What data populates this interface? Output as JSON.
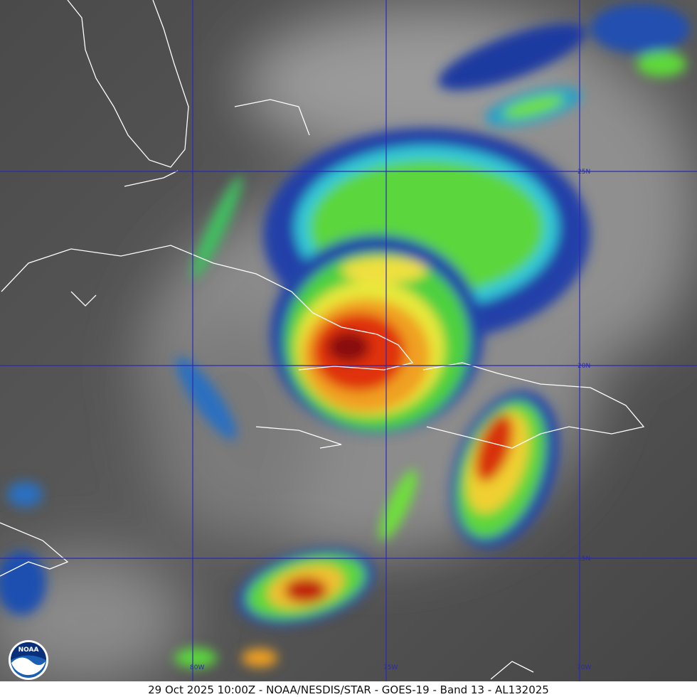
{
  "caption": "29 Oct 2025 10:00Z - NOAA/NESDIS/STAR - GOES-19 - Band 13 - AL132025",
  "logo": "NOAA",
  "latitude_labels": [
    "25N",
    "20N",
    "15N"
  ],
  "longitude_labels": [
    "80W",
    "75W",
    "70W"
  ]
}
